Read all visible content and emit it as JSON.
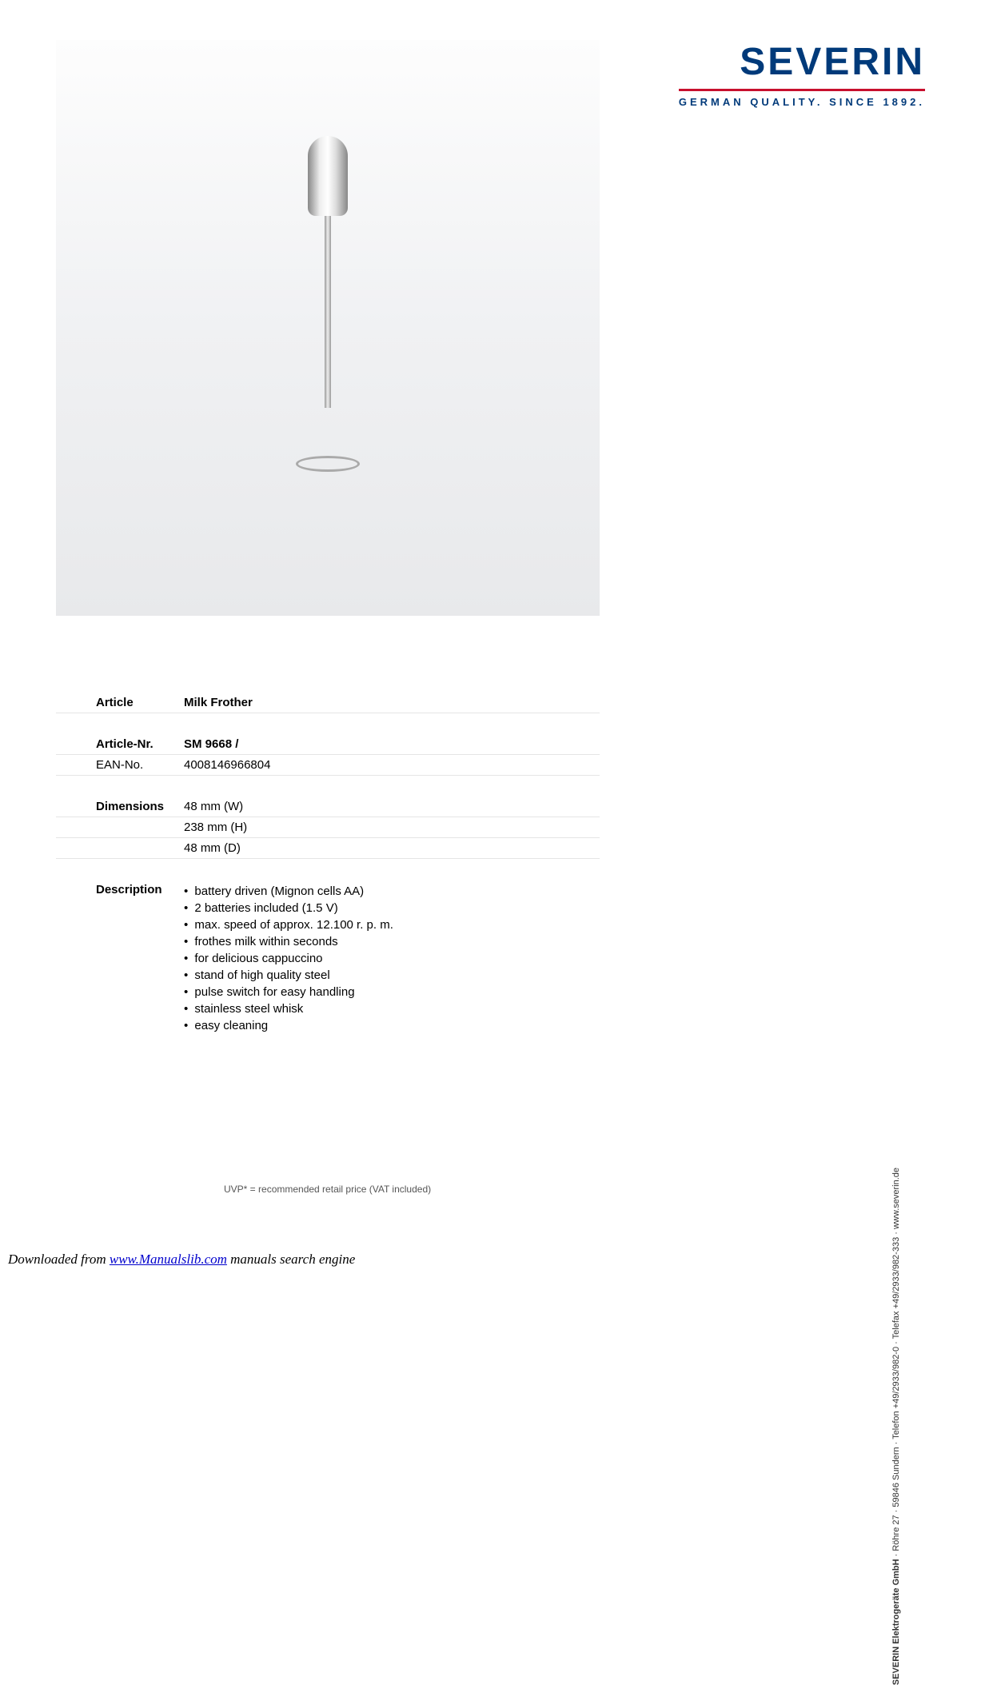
{
  "logo": {
    "brand": "SEVERIN",
    "tagline": "GERMAN QUALITY. SINCE 1892.",
    "brand_color": "#003a7a",
    "line_color": "#c8102e"
  },
  "specs": {
    "article_label": "Article",
    "article_value": "Milk Frother",
    "article_nr_label": "Article-Nr.",
    "article_nr_value": "SM 9668 /",
    "ean_label": "EAN-No.",
    "ean_value": "4008146966804",
    "dimensions_label": "Dimensions",
    "dim_w": "48 mm (W)",
    "dim_h": "238 mm (H)",
    "dim_d": "48 mm (D)",
    "description_label": "Description",
    "description_items": [
      "battery driven (Mignon cells AA)",
      "2 batteries included (1.5 V)",
      "max. speed of approx. 12.100 r. p. m.",
      "frothes milk within seconds",
      "for delicious cappuccino",
      "stand of high quality steel",
      "pulse switch for easy handling",
      "stainless steel whisk",
      "easy cleaning"
    ]
  },
  "footnote": "UVP* = recommended retail price (VAT included)",
  "company_info": {
    "name": "SEVERIN Elektrogeräte GmbH",
    "rest": " · Röhre 27 · 59846 Sundern · Telefon +49/2933/982-0 · Telefax +49/2933/982-333 · www.severin.de"
  },
  "download": {
    "prefix": "Downloaded from ",
    "link_text": "www.Manualslib.com",
    "suffix": " manuals search engine"
  }
}
